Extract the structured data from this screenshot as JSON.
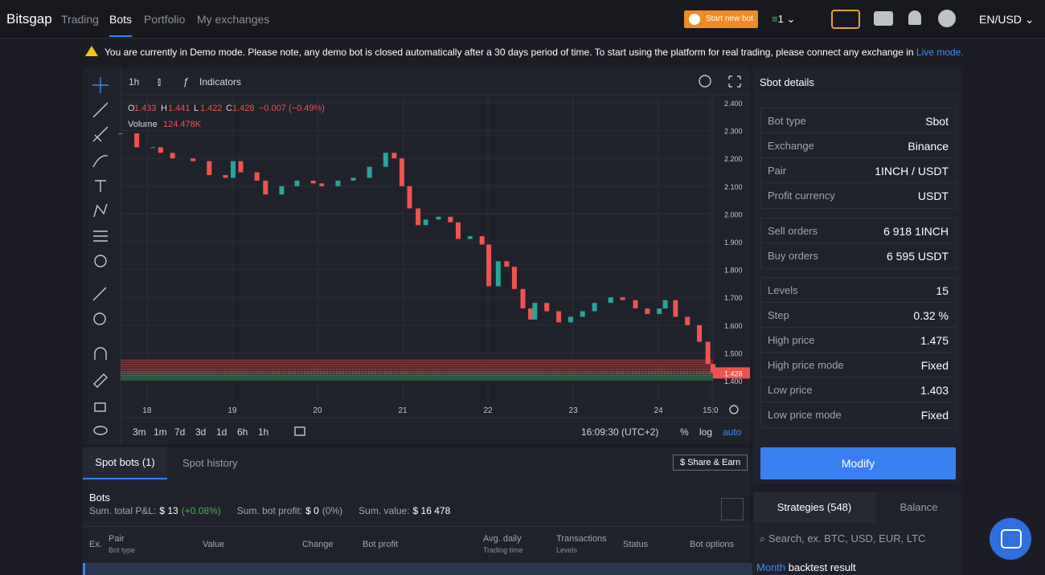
{
  "nav": {
    "brand": "Bitsgap",
    "links": [
      "Trading",
      "Bots",
      "Portfolio",
      "My exchanges"
    ],
    "start_button": "Start new bot",
    "bot_count": "1",
    "locale": "EN/USD"
  },
  "banner": {
    "text": "You are currently in Demo mode. Please note, any demo bot is closed automatically after a 30 days period of time. To start using the platform for real trading, please connect any exchange in",
    "link": "Live mode."
  },
  "toolbar": {
    "interval": "1h",
    "indicators": "Indicators"
  },
  "legend": {
    "o_label": "O",
    "open": 1.433,
    "h_label": "H",
    "high": 1.441,
    "l_label": "L",
    "low": 1.422,
    "c_label": "C",
    "close": 1.428,
    "change": "−0.007 (−0.49%)",
    "volume_label": "Volume",
    "volume": "124.478K"
  },
  "chart_data": {
    "type": "candle",
    "up_color": "#26a69a",
    "down_color": "#ef5350",
    "x": [
      17.69,
      17.88,
      18.07,
      18.16,
      18.3,
      18.54,
      18.73,
      18.92,
      19.01,
      19.1,
      19.29,
      19.39,
      19.58,
      19.76,
      19.95,
      20.05,
      20.24,
      20.42,
      20.61,
      20.8,
      20.9,
      20.99,
      21.08,
      21.18,
      21.27,
      21.42,
      21.56,
      21.65,
      21.79,
      21.93,
      22.01,
      22.12,
      22.22,
      22.31,
      22.41,
      22.5,
      22.55,
      22.69,
      22.83,
      22.97,
      23.11,
      23.25,
      23.44,
      23.58,
      23.73,
      23.87,
      24.01,
      24.08,
      24.2,
      24.34,
      24.48,
      24.58,
      24.64
    ],
    "values": [
      2.29,
      2.24,
      2.24,
      2.22,
      2.2,
      2.19,
      2.14,
      2.13,
      2.19,
      2.15,
      2.12,
      2.07,
      2.1,
      2.12,
      2.11,
      2.1,
      2.12,
      2.13,
      2.17,
      2.22,
      2.2,
      2.1,
      2.02,
      1.96,
      1.98,
      1.99,
      1.97,
      1.91,
      1.92,
      1.89,
      1.74,
      1.83,
      1.81,
      1.73,
      1.66,
      1.62,
      1.68,
      1.65,
      1.61,
      1.63,
      1.65,
      1.68,
      1.7,
      1.69,
      1.66,
      1.64,
      1.66,
      1.69,
      1.63,
      1.6,
      1.54,
      1.46,
      1.428
    ],
    "xlim": [
      17.69,
      24.64
    ],
    "xticks": [
      18,
      19,
      20,
      21,
      22,
      23,
      24,
      {
        "value": 24.61,
        "label": "15:0"
      }
    ],
    "ylim": [
      1.325,
      2.429
    ],
    "yticks": [
      {
        "value": 2.4,
        "label": "2.400"
      },
      {
        "value": 2.3,
        "label": "2.300"
      },
      {
        "value": 2.2,
        "label": "2.200"
      },
      {
        "value": 2.1,
        "label": "2.100"
      },
      {
        "value": 2.0,
        "label": "2.000"
      },
      {
        "value": 1.9,
        "label": "1.900"
      },
      {
        "value": 1.8,
        "label": "1.800"
      },
      {
        "value": 1.7,
        "label": "1.700"
      },
      {
        "value": 1.6,
        "label": "1.600"
      },
      {
        "value": 1.5,
        "label": "1.500"
      },
      {
        "value": 1.4,
        "label": "1.400"
      }
    ],
    "last_price": 1.428,
    "grid": true
  },
  "footer": {
    "ranges": [
      "3m",
      "1m",
      "7d",
      "3d",
      "1d",
      "6h",
      "1h"
    ],
    "time": "16:09:30 (UTC+2)",
    "scales": [
      "%",
      "log",
      "auto"
    ]
  },
  "details": {
    "title": "Sbot details",
    "groups": [
      [
        [
          "Bot type",
          "Sbot"
        ],
        [
          "Exchange",
          "Binance"
        ],
        [
          "Pair",
          "1INCH / USDT"
        ],
        [
          "Profit currency",
          "USDT"
        ]
      ],
      [
        [
          "Sell orders",
          "6 918 1INCH"
        ],
        [
          "Buy orders",
          "6 595 USDT"
        ]
      ],
      [
        [
          "Levels",
          15
        ],
        [
          "Step",
          "0.32 %"
        ],
        [
          "High price",
          1.475
        ],
        [
          "High price mode",
          "Fixed"
        ],
        [
          "Low price",
          1.403
        ],
        [
          "Low price mode",
          "Fixed"
        ]
      ]
    ],
    "button": "Modify"
  },
  "bots": {
    "tabs": [
      "Spot bots (1)",
      "Spot history"
    ],
    "share": "$ Share & Earn",
    "title": "Bots",
    "summary": [
      [
        "Sum. total P&L:",
        "$ 13",
        "(+0.08%)"
      ],
      [
        "Sum. bot profit:",
        "$ 0",
        "(0%)"
      ],
      [
        "Sum. value:",
        "$ 16 478",
        null
      ]
    ],
    "headers": [
      [
        "Ex.",
        null
      ],
      [
        "Pair",
        "Bot type"
      ],
      [
        "Value",
        null
      ],
      [
        "Change",
        null
      ],
      [
        "Bot profit",
        null
      ],
      [
        "Avg. daily",
        "Trading time"
      ],
      [
        "Transactions",
        "Levels"
      ],
      [
        "Status",
        null
      ],
      [
        "Bot options",
        null
      ]
    ]
  },
  "strategies": {
    "tabs": [
      "Strategies (548)",
      "Balance"
    ],
    "search": "Search, ex. BTC, USD, EUR, LTC",
    "period": "Month",
    "result": "backtest result"
  }
}
